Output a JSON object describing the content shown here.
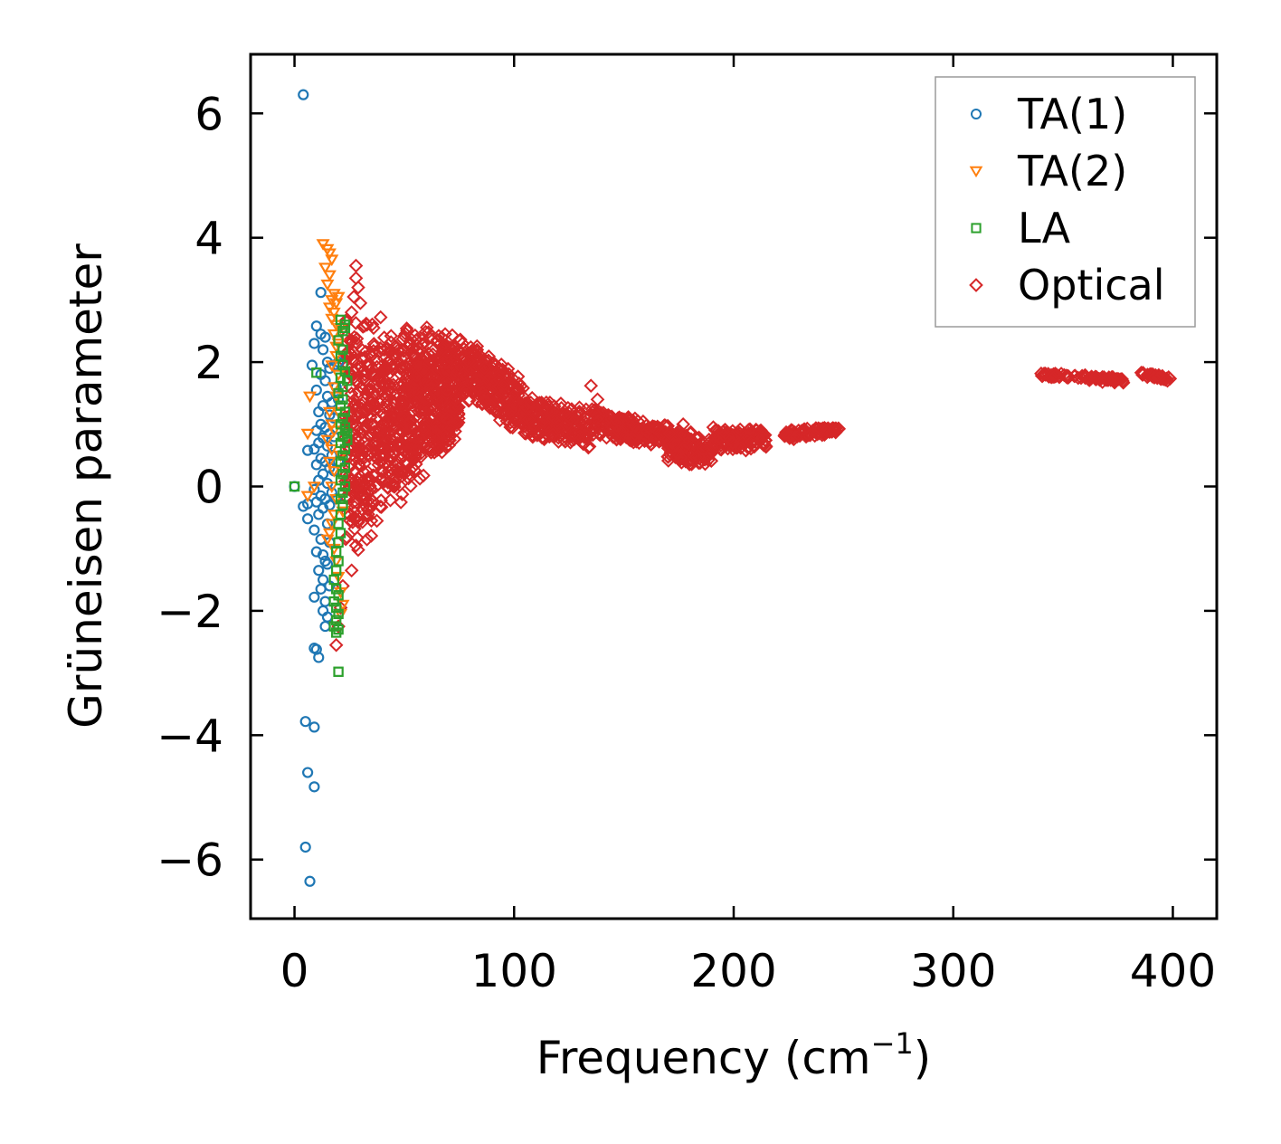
{
  "chart_data": {
    "type": "scatter",
    "title": "",
    "xlabel": "Frequency (cm",
    "xlabel_sup": "−1",
    "xlabel_close": ")",
    "ylabel": "Grüneisen parameter",
    "xlim": [
      -20,
      420
    ],
    "ylim": [
      -6.95,
      6.95
    ],
    "xticks": [
      0,
      100,
      200,
      300,
      400
    ],
    "xtick_labels": [
      "0",
      "100",
      "200",
      "300",
      "400"
    ],
    "yticks": [
      -6,
      -4,
      -2,
      0,
      2,
      4,
      6
    ],
    "ytick_labels": [
      "−6",
      "−4",
      "−2",
      "0",
      "2",
      "4",
      "6"
    ],
    "grid": false,
    "legend_position": "top-right",
    "series": [
      {
        "name": "TA(1)",
        "marker": "circle",
        "color": "#1f77b4",
        "points": [
          [
            4,
            6.3
          ],
          [
            12,
            3.12
          ],
          [
            10,
            2.58
          ],
          [
            12,
            2.45
          ],
          [
            9,
            2.3
          ],
          [
            14,
            2.4
          ],
          [
            13,
            2.2
          ],
          [
            15,
            2.0
          ],
          [
            8,
            1.95
          ],
          [
            16,
            1.9
          ],
          [
            12,
            1.8
          ],
          [
            14,
            1.7
          ],
          [
            10,
            1.55
          ],
          [
            15,
            1.45
          ],
          [
            17,
            1.35
          ],
          [
            13,
            1.3
          ],
          [
            11,
            1.2
          ],
          [
            16,
            1.15
          ],
          [
            18,
            1.1
          ],
          [
            12,
            1.0
          ],
          [
            14,
            0.95
          ],
          [
            10,
            0.9
          ],
          [
            16,
            0.85
          ],
          [
            13,
            0.78
          ],
          [
            11,
            0.7
          ],
          [
            15,
            0.65
          ],
          [
            9,
            0.6
          ],
          [
            6,
            0.58
          ],
          [
            17,
            0.5
          ],
          [
            12,
            0.45
          ],
          [
            14,
            0.4
          ],
          [
            10,
            0.35
          ],
          [
            16,
            0.3
          ],
          [
            18,
            0.25
          ],
          [
            13,
            0.2
          ],
          [
            11,
            0.1
          ],
          [
            15,
            0.05
          ],
          [
            9,
            -0.05
          ],
          [
            17,
            -0.1
          ],
          [
            12,
            -0.15
          ],
          [
            14,
            -0.2
          ],
          [
            10,
            -0.25
          ],
          [
            16,
            -0.3
          ],
          [
            4,
            -0.32
          ],
          [
            6,
            -0.28
          ],
          [
            13,
            -0.35
          ],
          [
            11,
            -0.45
          ],
          [
            6,
            -0.52
          ],
          [
            15,
            -0.6
          ],
          [
            9,
            -0.7
          ],
          [
            12,
            -0.85
          ],
          [
            16,
            -0.9
          ],
          [
            10,
            -1.05
          ],
          [
            13,
            -1.1
          ],
          [
            14,
            -1.2
          ],
          [
            11,
            -1.35
          ],
          [
            15,
            -1.25
          ],
          [
            13,
            -1.5
          ],
          [
            12,
            -1.65
          ],
          [
            16,
            -1.6
          ],
          [
            9,
            -1.78
          ],
          [
            14,
            -1.85
          ],
          [
            13,
            -2.0
          ],
          [
            15,
            -2.1
          ],
          [
            14,
            -2.25
          ],
          [
            10,
            -2.62
          ],
          [
            9,
            -2.6
          ],
          [
            11,
            -2.75
          ],
          [
            5,
            -3.78
          ],
          [
            9,
            -3.87
          ],
          [
            6,
            -4.6
          ],
          [
            9,
            -4.83
          ],
          [
            5,
            -5.8
          ],
          [
            7,
            -6.35
          ],
          [
            0,
            0.0
          ],
          [
            18,
            1.95
          ],
          [
            20,
            2.0
          ],
          [
            19,
            1.6
          ],
          [
            20,
            1.4
          ],
          [
            18,
            0.8
          ],
          [
            20,
            0.4
          ],
          [
            19,
            -0.2
          ]
        ]
      },
      {
        "name": "TA(2)",
        "marker": "triangle-down",
        "color": "#ff7f0e",
        "points": [
          [
            13,
            3.9
          ],
          [
            15,
            3.82
          ],
          [
            16,
            3.75
          ],
          [
            17,
            3.65
          ],
          [
            14,
            3.52
          ],
          [
            16,
            3.4
          ],
          [
            15,
            3.25
          ],
          [
            18,
            3.1
          ],
          [
            17,
            3.0
          ],
          [
            16,
            2.88
          ],
          [
            19,
            2.95
          ],
          [
            20,
            3.05
          ],
          [
            18,
            2.8
          ],
          [
            17,
            2.7
          ],
          [
            19,
            2.6
          ],
          [
            18,
            2.45
          ],
          [
            20,
            2.3
          ],
          [
            19,
            2.1
          ],
          [
            17,
            1.95
          ],
          [
            20,
            1.8
          ],
          [
            18,
            1.6
          ],
          [
            19,
            1.45
          ],
          [
            7,
            1.45
          ],
          [
            16,
            1.2
          ],
          [
            17,
            1.0
          ],
          [
            18,
            0.9
          ],
          [
            6,
            0.85
          ],
          [
            15,
            0.75
          ],
          [
            17,
            0.6
          ],
          [
            16,
            0.4
          ],
          [
            18,
            0.25
          ],
          [
            17,
            0.0
          ],
          [
            9,
            0.0
          ],
          [
            19,
            -0.2
          ],
          [
            6,
            -0.15
          ],
          [
            18,
            -0.45
          ],
          [
            17,
            -0.6
          ],
          [
            16,
            -0.75
          ],
          [
            15,
            -0.85
          ],
          [
            18,
            -1.0
          ],
          [
            19,
            -1.2
          ],
          [
            20,
            -1.45
          ],
          [
            21,
            -1.7
          ],
          [
            22,
            -1.9
          ],
          [
            21,
            -2.05
          ],
          [
            19,
            2.25
          ],
          [
            21,
            2.55
          ],
          [
            20,
            1.2
          ],
          [
            21,
            0.5
          ],
          [
            22,
            -0.4
          ]
        ]
      },
      {
        "name": "LA",
        "marker": "square",
        "color": "#2ca02c",
        "points": [
          [
            21,
            2.68
          ],
          [
            23,
            2.6
          ],
          [
            22,
            2.5
          ],
          [
            20,
            2.35
          ],
          [
            22,
            2.2
          ],
          [
            21,
            2.1
          ],
          [
            22,
            1.95
          ],
          [
            23,
            1.85
          ],
          [
            10,
            1.83
          ],
          [
            21,
            1.75
          ],
          [
            22,
            1.6
          ],
          [
            20,
            1.5
          ],
          [
            22,
            1.4
          ],
          [
            21,
            1.3
          ],
          [
            23,
            1.2
          ],
          [
            22,
            1.1
          ],
          [
            21,
            1.0
          ],
          [
            23,
            0.9
          ],
          [
            22,
            0.8
          ],
          [
            21,
            0.7
          ],
          [
            23,
            0.6
          ],
          [
            22,
            0.5
          ],
          [
            21,
            0.4
          ],
          [
            23,
            0.3
          ],
          [
            22,
            0.2
          ],
          [
            21,
            0.1
          ],
          [
            23,
            0.0
          ],
          [
            22,
            -0.1
          ],
          [
            21,
            -0.2
          ],
          [
            22,
            -0.3
          ],
          [
            21,
            -0.45
          ],
          [
            20,
            -0.6
          ],
          [
            21,
            -0.75
          ],
          [
            20,
            -0.9
          ],
          [
            19,
            -1.05
          ],
          [
            20,
            -1.2
          ],
          [
            19,
            -1.35
          ],
          [
            18,
            -1.5
          ],
          [
            19,
            -1.65
          ],
          [
            20,
            -1.75
          ],
          [
            18,
            -1.85
          ],
          [
            19,
            -1.95
          ],
          [
            20,
            -2.05
          ],
          [
            19,
            -2.15
          ],
          [
            18,
            -2.25
          ],
          [
            19,
            -2.35
          ],
          [
            20,
            -2.3
          ],
          [
            20,
            -2.98
          ],
          [
            0,
            0.0
          ],
          [
            23,
            2.55
          ],
          [
            24,
            1.7
          ],
          [
            24,
            0.85
          ],
          [
            24,
            0.75
          ],
          [
            23,
            0.95
          ]
        ]
      },
      {
        "name": "Optical",
        "marker": "diamond",
        "color": "#d62728",
        "segments": [
          {
            "x0": 23,
            "x1": 75,
            "yc0": 0.8,
            "yc1": 1.6,
            "half0": 2.1,
            "half1": 0.9,
            "n": 900
          },
          {
            "x0": 75,
            "x1": 105,
            "yc0": 2.0,
            "yc1": 1.25,
            "half0": 0.55,
            "half1": 0.45,
            "n": 280
          },
          {
            "x0": 105,
            "x1": 135,
            "yc0": 1.1,
            "yc1": 0.95,
            "half0": 0.35,
            "half1": 0.35,
            "n": 200
          },
          {
            "x0": 135,
            "x1": 170,
            "yc0": 1.05,
            "yc1": 0.8,
            "half0": 0.25,
            "half1": 0.2,
            "n": 200
          },
          {
            "x0": 170,
            "x1": 190,
            "yc0": 0.65,
            "yc1": 0.55,
            "half0": 0.3,
            "half1": 0.3,
            "n": 120
          },
          {
            "x0": 190,
            "x1": 215,
            "yc0": 0.75,
            "yc1": 0.75,
            "half0": 0.22,
            "half1": 0.18,
            "n": 140
          },
          {
            "x0": 223,
            "x1": 248,
            "yc0": 0.82,
            "yc1": 0.92,
            "half0": 0.1,
            "half1": 0.06,
            "n": 90
          },
          {
            "x0": 340,
            "x1": 360,
            "yc0": 1.8,
            "yc1": 1.75,
            "half0": 0.04,
            "half1": 0.04,
            "n": 45
          },
          {
            "x0": 360,
            "x1": 378,
            "yc0": 1.75,
            "yc1": 1.7,
            "half0": 0.05,
            "half1": 0.05,
            "n": 45
          },
          {
            "x0": 385,
            "x1": 400,
            "yc0": 1.82,
            "yc1": 1.72,
            "half0": 0.04,
            "half1": 0.04,
            "n": 35
          }
        ],
        "outliers": [
          [
            28,
            3.55
          ],
          [
            28,
            3.35
          ],
          [
            29,
            3.2
          ],
          [
            27,
            3.05
          ],
          [
            30,
            2.95
          ],
          [
            26,
            2.8
          ],
          [
            33,
            2.6
          ],
          [
            36,
            2.55
          ],
          [
            44,
            2.42
          ],
          [
            50,
            2.42
          ],
          [
            61,
            2.48
          ],
          [
            35,
            -0.55
          ],
          [
            33,
            -0.85
          ],
          [
            29,
            -1.02
          ],
          [
            26,
            -1.35
          ],
          [
            22,
            -1.6
          ],
          [
            21,
            -1.95
          ],
          [
            20,
            -2.25
          ],
          [
            19,
            -2.55
          ],
          [
            47,
            0.35
          ],
          [
            57,
            0.6
          ],
          [
            135,
            1.62
          ],
          [
            177,
            1.0
          ],
          [
            138,
            1.4
          ],
          [
            28,
            -0.95
          ],
          [
            32,
            -0.3
          ],
          [
            40,
            0.5
          ],
          [
            56,
            0.68
          ]
        ]
      }
    ]
  }
}
